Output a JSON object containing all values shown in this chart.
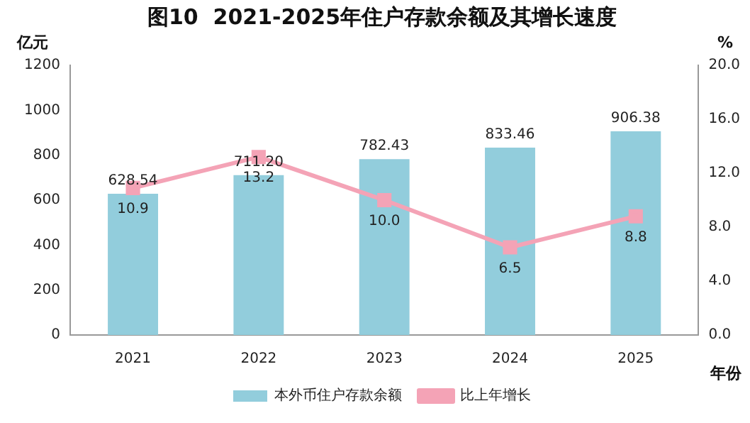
{
  "chart_data": {
    "type": "bar",
    "title": "图10  2021-2025年住户存款余额及其增长速度",
    "ylabel": "亿元",
    "y2label": "%",
    "xlabel": "年份",
    "categories": [
      "2021",
      "2022",
      "2023",
      "2024",
      "2025"
    ],
    "series": [
      {
        "name": "本外币住户存款余额",
        "color": "#92cddc",
        "values": [
          628.54,
          711.2,
          782.43,
          833.46,
          906.38
        ],
        "value_labels": [
          "628.54",
          "711.20",
          "782.43",
          "833.46",
          "906.38"
        ]
      },
      {
        "name": "比上年增长",
        "type": "line",
        "axis": "y2",
        "color": "#f4a3b6",
        "marker": "square",
        "values": [
          10.9,
          13.2,
          10.0,
          6.5,
          8.8
        ],
        "value_labels": [
          "10.9",
          "13.2",
          "10.0",
          "6.5",
          "8.8"
        ]
      }
    ],
    "ylim": [
      0,
      1200
    ],
    "yticks": [
      0,
      200,
      400,
      600,
      800,
      1000,
      1200
    ],
    "y2lim": [
      0,
      20
    ],
    "y2ticks": [
      {
        "value": 0,
        "label": "0.0"
      },
      {
        "value": 4,
        "label": "4.0"
      },
      {
        "value": 8,
        "label": "8.0"
      },
      {
        "value": 12,
        "label": "12.0"
      },
      {
        "value": 16,
        "label": "16.0"
      },
      {
        "value": 20,
        "label": "20.0"
      }
    ],
    "grid": false,
    "legend": "bottom"
  }
}
